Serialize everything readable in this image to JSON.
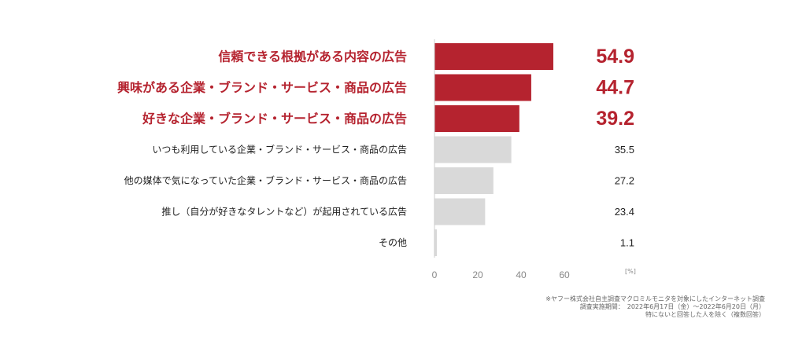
{
  "chart_data": {
    "type": "bar",
    "orientation": "horizontal",
    "categories": [
      "信頼できる根拠がある内容の広告",
      "興味がある企業・ブランド・サービス・商品の広告",
      "好きな企業・ブランド・サービス・商品の広告",
      "いつも利用している企業・ブランド・サービス・商品の広告",
      "他の媒体で気になっていた企業・ブランド・サービス・商品の広告",
      "推し（自分が好きなタレントなど）が起用されている広告",
      "その他"
    ],
    "values": [
      54.9,
      44.7,
      39.2,
      35.5,
      27.2,
      23.4,
      1.1
    ],
    "value_labels": [
      "54.9",
      "44.7",
      "39.2",
      "35.5",
      "27.2",
      "23.4",
      "1.1"
    ],
    "highlighted": [
      true,
      true,
      true,
      false,
      false,
      false,
      false
    ],
    "xlim": [
      0,
      60
    ],
    "xticks": [
      "0",
      "20",
      "40",
      "60"
    ],
    "unit_label": "[%]",
    "grid": false,
    "colors": {
      "highlight": "#b5232f",
      "normal": "#d9d9d9",
      "axis": "#cccccc",
      "normal_text": "#222222"
    }
  },
  "notes": [
    "※ヤフー株式会社自主調査マクロミルモニタを対象にしたインターネット調査",
    "調査実施期間：　2022年6月17日（金）～2022年6月20日（月）",
    "特にないと回答した人を除く（複数回答）"
  ]
}
